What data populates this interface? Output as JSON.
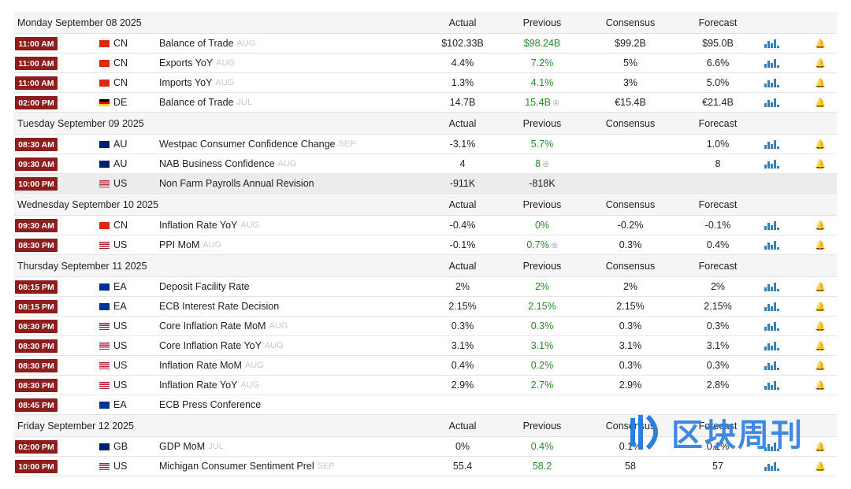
{
  "days": [
    {
      "date": "Monday September 08 2025",
      "headers": [
        "Actual",
        "Previous",
        "Consensus",
        "Forecast"
      ],
      "events": [
        {
          "time": "11:00 AM",
          "country": "CN",
          "event": "Balance of Trade",
          "period": "AUG",
          "actual": "$102.33B",
          "previous": "$98.24B",
          "consensus": "$99.2B",
          "forecast": "$95.0B"
        },
        {
          "time": "11:00 AM",
          "country": "CN",
          "event": "Exports YoY",
          "period": "AUG",
          "actual": "4.4%",
          "previous": "7.2%",
          "consensus": "5%",
          "forecast": "6.6%"
        },
        {
          "time": "11:00 AM",
          "country": "CN",
          "event": "Imports YoY",
          "period": "AUG",
          "actual": "1.3%",
          "previous": "4.1%",
          "consensus": "3%",
          "forecast": "5.0%"
        },
        {
          "time": "02:00 PM",
          "country": "DE",
          "event": "Balance of Trade",
          "period": "JUL",
          "actual": "14.7B",
          "previous": "15.4B",
          "revised": true,
          "consensus": "€15.4B",
          "forecast": "€21.4B"
        }
      ]
    },
    {
      "date": "Tuesday September 09 2025",
      "headers": [
        "Actual",
        "Previous",
        "Consensus",
        "Forecast"
      ],
      "events": [
        {
          "time": "08:30 AM",
          "country": "AU",
          "event": "Westpac Consumer Confidence Change",
          "period": "SEP",
          "actual": "-3.1%",
          "previous": "5.7%",
          "forecast": "1.0%"
        },
        {
          "time": "09:30 AM",
          "country": "AU",
          "event": "NAB Business Confidence",
          "period": "AUG",
          "actual": "4",
          "previous": "8",
          "revised": true,
          "forecast": "8"
        },
        {
          "time": "10:00 PM",
          "country": "US",
          "event": "Non Farm Payrolls Annual Revision",
          "actual": "-911K",
          "previous": "-818K",
          "highlight": true
        }
      ]
    },
    {
      "date": "Wednesday September 10 2025",
      "headers": [
        "Actual",
        "Previous",
        "Consensus",
        "Forecast"
      ],
      "events": [
        {
          "time": "09:30 AM",
          "country": "CN",
          "event": "Inflation Rate YoY",
          "period": "AUG",
          "actual": "-0.4%",
          "previous": "0%",
          "consensus": "-0.2%",
          "forecast": "-0.1%"
        },
        {
          "time": "08:30 PM",
          "country": "US",
          "event": "PPI MoM",
          "period": "AUG",
          "actual": "-0.1%",
          "previous": "0.7%",
          "revised": true,
          "consensus": "0.3%",
          "forecast": "0.4%"
        }
      ]
    },
    {
      "date": "Thursday September 11 2025",
      "headers": [
        "Actual",
        "Previous",
        "Consensus",
        "Forecast"
      ],
      "events": [
        {
          "time": "08:15 PM",
          "country": "EA",
          "event": "Deposit Facility Rate",
          "actual": "2%",
          "previous": "2%",
          "consensus": "2%",
          "forecast": "2%"
        },
        {
          "time": "08:15 PM",
          "country": "EA",
          "event": "ECB Interest Rate Decision",
          "actual": "2.15%",
          "previous": "2.15%",
          "consensus": "2.15%",
          "forecast": "2.15%"
        },
        {
          "time": "08:30 PM",
          "country": "US",
          "event": "Core Inflation Rate MoM",
          "period": "AUG",
          "actual": "0.3%",
          "previous": "0.3%",
          "consensus": "0.3%",
          "forecast": "0.3%"
        },
        {
          "time": "08:30 PM",
          "country": "US",
          "event": "Core Inflation Rate YoY",
          "period": "AUG",
          "actual": "3.1%",
          "previous": "3.1%",
          "consensus": "3.1%",
          "forecast": "3.1%"
        },
        {
          "time": "08:30 PM",
          "country": "US",
          "event": "Inflation Rate MoM",
          "period": "AUG",
          "actual": "0.4%",
          "previous": "0.2%",
          "consensus": "0.3%",
          "forecast": "0.3%"
        },
        {
          "time": "08:30 PM",
          "country": "US",
          "event": "Inflation Rate YoY",
          "period": "AUG",
          "actual": "2.9%",
          "previous": "2.7%",
          "consensus": "2.9%",
          "forecast": "2.8%"
        },
        {
          "time": "08:45 PM",
          "country": "EA",
          "event": "ECB Press Conference"
        }
      ]
    },
    {
      "date": "Friday September 12 2025",
      "headers": [
        "Actual",
        "Previous",
        "Consensus",
        "Forecast"
      ],
      "events": [
        {
          "time": "02:00 PM",
          "country": "GB",
          "event": "GDP MoM",
          "period": "JUL",
          "actual": "0%",
          "previous": "0.4%",
          "consensus": "0.1%",
          "forecast": "0.1%"
        },
        {
          "time": "10:00 PM",
          "country": "US",
          "event": "Michigan Consumer Sentiment Prel",
          "period": "SEP",
          "actual": "55.4",
          "previous": "58.2",
          "consensus": "58",
          "forecast": "57"
        }
      ]
    }
  ],
  "watermark": "区块周刊"
}
